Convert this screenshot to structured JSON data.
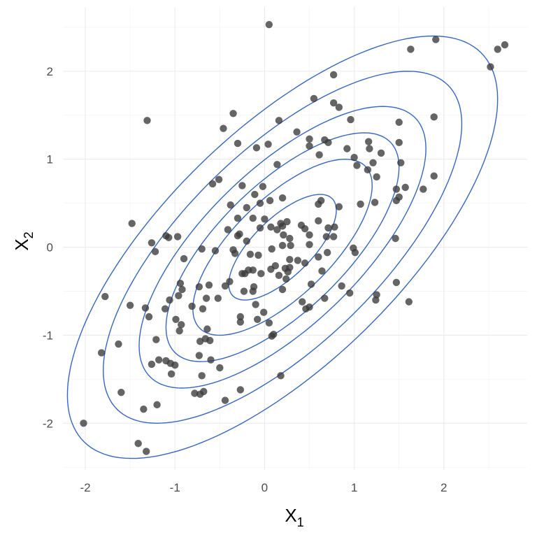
{
  "chart_data": {
    "type": "scatter",
    "title": "",
    "xlabel": {
      "main": "X",
      "sub": "1"
    },
    "ylabel": {
      "main": "X",
      "sub": "2"
    },
    "xlim": [
      -2.25,
      2.93
    ],
    "ylim": [
      -2.53,
      2.73
    ],
    "x_ticks": [
      -2,
      -1,
      0,
      1,
      2
    ],
    "y_ticks": [
      -2,
      -1,
      0,
      1,
      2
    ],
    "x_tick_labels": [
      "-2",
      "-1",
      "0",
      "1",
      "2"
    ],
    "y_tick_labels": [
      "-2",
      "-1",
      "0",
      "1",
      "2"
    ],
    "grid": true,
    "legend": "none",
    "colors": {
      "points": "#3a3a3a",
      "contours": "#3366cc",
      "grid": "#ebebeb"
    },
    "contour_distribution": {
      "mean": [
        0.2,
        0.0
      ],
      "sd": [
        1.0,
        1.0
      ],
      "correlation": 0.7,
      "mahalanobis_levels": [
        0.6,
        1.0,
        1.3,
        1.6,
        2.0,
        2.4
      ]
    },
    "points": [
      [
        0.05,
        2.53
      ],
      [
        1.63,
        2.25
      ],
      [
        1.91,
        2.36
      ],
      [
        2.52,
        2.05
      ],
      [
        2.6,
        2.25
      ],
      [
        2.68,
        2.3
      ],
      [
        0.77,
        1.96
      ],
      [
        -1.31,
        1.44
      ],
      [
        -0.35,
        1.52
      ],
      [
        -0.46,
        1.35
      ],
      [
        0.55,
        1.69
      ],
      [
        0.77,
        1.64
      ],
      [
        0.83,
        1.59
      ],
      [
        0.96,
        1.45
      ],
      [
        0.16,
        1.44
      ],
      [
        0.36,
        1.31
      ],
      [
        0.5,
        1.23
      ],
      [
        0.67,
        1.22
      ],
      [
        0.5,
        1.15
      ],
      [
        0.71,
        1.19
      ],
      [
        0.92,
        1.12
      ],
      [
        1.0,
        1.02
      ],
      [
        1.16,
        1.2
      ],
      [
        1.17,
        1.12
      ],
      [
        1.3,
        1.07
      ],
      [
        1.5,
        1.42
      ],
      [
        1.5,
        1.19
      ],
      [
        1.89,
        1.48
      ],
      [
        -0.3,
        1.18
      ],
      [
        -0.09,
        1.13
      ],
      [
        0.04,
        1.17
      ],
      [
        0.14,
        0.94
      ],
      [
        0.61,
        1.05
      ],
      [
        1.03,
        0.93
      ],
      [
        1.15,
        0.88
      ],
      [
        1.21,
        0.96
      ],
      [
        1.25,
        0.8
      ],
      [
        1.52,
        0.96
      ],
      [
        -0.58,
        0.72
      ],
      [
        -0.51,
        0.77
      ],
      [
        -0.25,
        0.7
      ],
      [
        -0.11,
        0.6
      ],
      [
        -0.02,
        0.69
      ],
      [
        1.47,
        0.66
      ],
      [
        1.57,
        0.68
      ],
      [
        1.77,
        0.66
      ],
      [
        1.89,
        0.81
      ],
      [
        1.23,
        0.51
      ],
      [
        1.5,
        0.57
      ],
      [
        1.47,
        0.53
      ],
      [
        0.6,
        0.49
      ],
      [
        0.63,
        0.53
      ],
      [
        0.83,
        0.46
      ],
      [
        1.07,
        0.49
      ],
      [
        -0.38,
        0.48
      ],
      [
        -0.2,
        0.45
      ],
      [
        -0.05,
        0.5
      ],
      [
        0.06,
        0.53
      ],
      [
        0.2,
        0.56
      ],
      [
        -1.48,
        0.27
      ],
      [
        -1.07,
        0.11
      ],
      [
        -1.1,
        0.13
      ],
      [
        -0.97,
        0.12
      ],
      [
        -1.26,
        0.05
      ],
      [
        -1.22,
        -0.05
      ],
      [
        -0.9,
        -0.13
      ],
      [
        -0.7,
        -0.02
      ],
      [
        -0.55,
        -0.04
      ],
      [
        -0.41,
        0.2
      ],
      [
        -0.3,
        0.33
      ],
      [
        -0.3,
        0.13
      ],
      [
        -0.28,
        0.15
      ],
      [
        -0.2,
        0.07
      ],
      [
        -0.13,
        0.33
      ],
      [
        -0.05,
        0.22
      ],
      [
        0.0,
        0.32
      ],
      [
        0.07,
        0.23
      ],
      [
        0.14,
        0.2
      ],
      [
        0.18,
        0.27
      ],
      [
        0.2,
        0.24
      ],
      [
        0.25,
        0.29
      ],
      [
        0.28,
        0.1
      ],
      [
        0.21,
        0.14
      ],
      [
        0.29,
        0.02
      ],
      [
        0.2,
        0.02
      ],
      [
        0.41,
        0.25
      ],
      [
        0.45,
        0.21
      ],
      [
        0.5,
        0.14
      ],
      [
        0.6,
        0.3
      ],
      [
        0.71,
        0.22
      ],
      [
        0.78,
        0.23
      ],
      [
        0.69,
        0.12
      ],
      [
        0.77,
        0.12
      ],
      [
        0.7,
        -0.06
      ],
      [
        0.5,
        0.03
      ],
      [
        0.45,
        -0.18
      ],
      [
        0.37,
        -0.15
      ],
      [
        0.28,
        -0.14
      ],
      [
        0.23,
        -0.24
      ],
      [
        0.16,
        -0.32
      ],
      [
        0.26,
        -0.28
      ],
      [
        0.08,
        -0.02
      ],
      [
        -0.07,
        -0.09
      ],
      [
        -0.16,
        -0.08
      ],
      [
        -0.35,
        -0.03
      ],
      [
        -0.33,
        -0.07
      ],
      [
        -0.25,
        -0.3
      ],
      [
        -0.22,
        -0.3
      ],
      [
        -0.18,
        -0.26
      ],
      [
        -0.13,
        -0.26
      ],
      [
        -0.04,
        -0.3
      ],
      [
        0.07,
        -0.25
      ],
      [
        0.12,
        -0.21
      ],
      [
        0.28,
        -0.23
      ],
      [
        0.6,
        -0.11
      ],
      [
        0.64,
        -0.27
      ],
      [
        0.42,
        -0.62
      ],
      [
        0.46,
        -0.7
      ],
      [
        0.67,
        -0.58
      ],
      [
        0.95,
        -0.52
      ],
      [
        0.99,
        -0.01
      ],
      [
        1.01,
        -0.06
      ],
      [
        1.25,
        -0.54
      ],
      [
        1.24,
        -0.6
      ],
      [
        1.61,
        -0.62
      ],
      [
        1.47,
        -0.4
      ],
      [
        1.46,
        0.1
      ],
      [
        0.86,
        -0.44
      ],
      [
        0.52,
        -0.42
      ],
      [
        0.5,
        -0.68
      ],
      [
        0.24,
        -0.36
      ],
      [
        0.2,
        -0.48
      ],
      [
        -0.12,
        -0.45
      ],
      [
        -0.13,
        -0.5
      ],
      [
        -0.23,
        -0.5
      ],
      [
        -0.1,
        -0.65
      ],
      [
        -0.01,
        -0.74
      ],
      [
        -0.08,
        -0.82
      ],
      [
        -0.27,
        -0.79
      ],
      [
        -0.27,
        -0.85
      ],
      [
        0.05,
        -0.86
      ],
      [
        0.1,
        -0.99
      ],
      [
        0.08,
        -1.01
      ],
      [
        -0.44,
        -0.44
      ],
      [
        -0.39,
        -0.39
      ],
      [
        -0.52,
        -0.58
      ],
      [
        -0.62,
        -0.43
      ],
      [
        -0.65,
        -0.58
      ],
      [
        -0.73,
        -0.45
      ],
      [
        -0.94,
        -0.41
      ],
      [
        -0.92,
        -0.48
      ],
      [
        -0.96,
        -0.55
      ],
      [
        -0.81,
        -0.67
      ],
      [
        -0.69,
        -0.7
      ],
      [
        -0.64,
        -0.93
      ],
      [
        -0.72,
        -1.07
      ],
      [
        -0.99,
        -0.82
      ],
      [
        -0.93,
        -0.88
      ],
      [
        -0.95,
        -0.95
      ],
      [
        -1.06,
        -0.6
      ],
      [
        -1.11,
        -0.7
      ],
      [
        -1.33,
        -0.69
      ],
      [
        -1.5,
        -0.66
      ],
      [
        -1.78,
        -0.56
      ],
      [
        -1.63,
        -1.1
      ],
      [
        -1.82,
        -1.2
      ],
      [
        -1.29,
        -0.79
      ],
      [
        -1.21,
        -1.05
      ],
      [
        -1.18,
        -1.28
      ],
      [
        -1.1,
        -1.29
      ],
      [
        -1.26,
        -1.33
      ],
      [
        -1.05,
        -1.32
      ],
      [
        -1.0,
        -1.34
      ],
      [
        -1.04,
        -1.44
      ],
      [
        -0.66,
        -1.04
      ],
      [
        -0.61,
        -1.06
      ],
      [
        -0.73,
        -1.23
      ],
      [
        -0.6,
        -1.28
      ],
      [
        -0.7,
        -1.46
      ],
      [
        -0.68,
        -1.64
      ],
      [
        -0.72,
        -1.67
      ],
      [
        -0.78,
        -1.66
      ],
      [
        -0.5,
        -1.37
      ],
      [
        -0.27,
        -1.62
      ],
      [
        -0.44,
        -1.74
      ],
      [
        0.18,
        -1.46
      ],
      [
        -1.2,
        -1.79
      ],
      [
        -1.35,
        -1.84
      ],
      [
        -1.6,
        -1.65
      ],
      [
        -2.02,
        -2.0
      ],
      [
        -1.41,
        -2.23
      ],
      [
        -1.32,
        -2.32
      ]
    ]
  }
}
